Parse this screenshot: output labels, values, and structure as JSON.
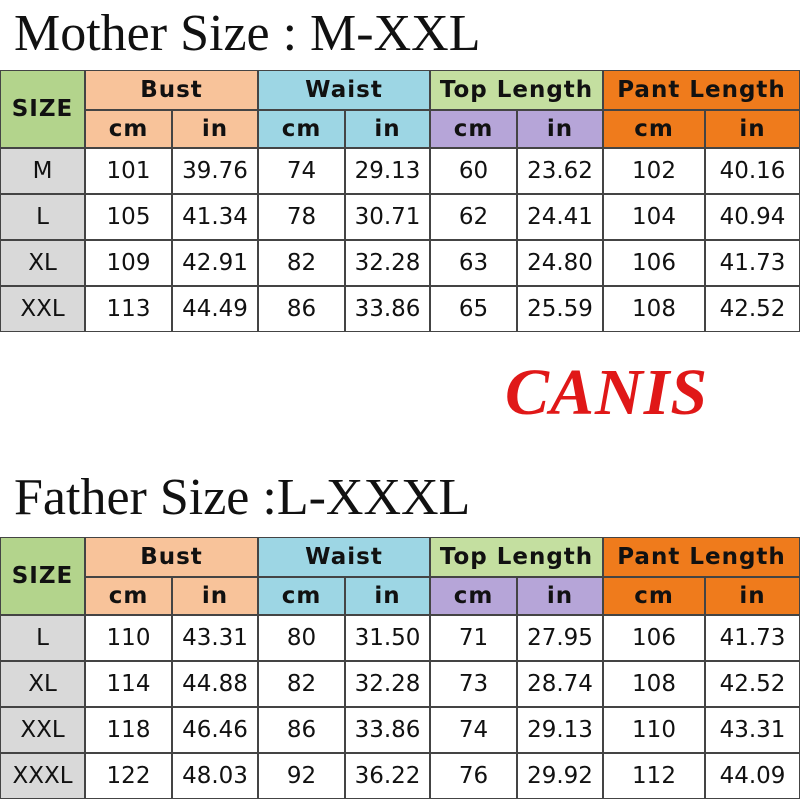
{
  "sections": [
    {
      "title": "Mother Size : M-XXL",
      "table": {
        "size_header": "SIZE",
        "groups": [
          "Bust",
          "Waist",
          "Top Length",
          "Pant Length"
        ],
        "units": [
          "cm",
          "in",
          "cm",
          "in",
          "cm",
          "in",
          "cm",
          "in"
        ],
        "rows": [
          [
            "M",
            "101",
            "39.76",
            "74",
            "29.13",
            "60",
            "23.62",
            "102",
            "40.16"
          ],
          [
            "L",
            "105",
            "41.34",
            "78",
            "30.71",
            "62",
            "24.41",
            "104",
            "40.94"
          ],
          [
            "XL",
            "109",
            "42.91",
            "82",
            "32.28",
            "63",
            "24.80",
            "106",
            "41.73"
          ],
          [
            "XXL",
            "113",
            "44.49",
            "86",
            "33.86",
            "65",
            "25.59",
            "108",
            "42.52"
          ]
        ]
      }
    },
    {
      "title": "Father Size :L-XXXL",
      "table": {
        "size_header": "SIZE",
        "groups": [
          "Bust",
          "Waist",
          "Top Length",
          "Pant Length"
        ],
        "units": [
          "cm",
          "in",
          "cm",
          "in",
          "cm",
          "in",
          "cm",
          "in"
        ],
        "rows": [
          [
            "L",
            "110",
            "43.31",
            "80",
            "31.50",
            "71",
            "27.95",
            "106",
            "41.73"
          ],
          [
            "XL",
            "114",
            "44.88",
            "82",
            "32.28",
            "73",
            "28.74",
            "108",
            "42.52"
          ],
          [
            "XXL",
            "118",
            "46.46",
            "86",
            "33.86",
            "74",
            "29.13",
            "110",
            "43.31"
          ],
          [
            "XXXL",
            "122",
            "48.03",
            "92",
            "36.22",
            "76",
            "29.92",
            "112",
            "44.09"
          ]
        ]
      }
    }
  ],
  "logo": "CANIS"
}
